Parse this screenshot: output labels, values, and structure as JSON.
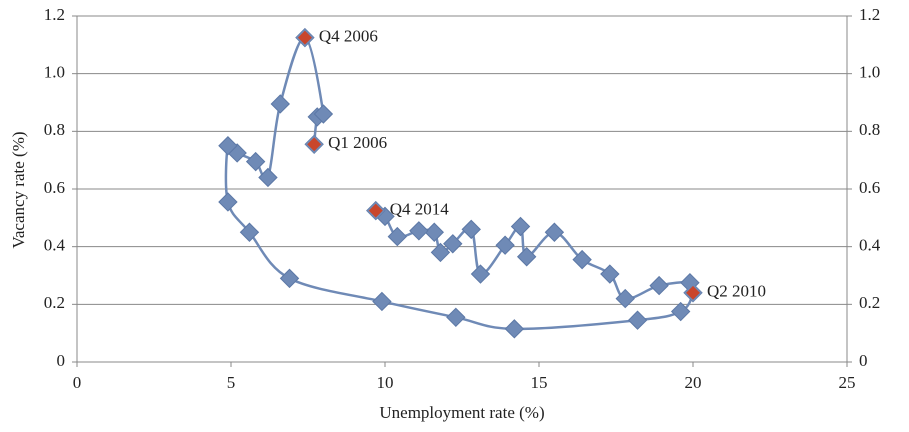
{
  "chart_data": {
    "type": "scatter",
    "x_label": "Unemployment rate (%)",
    "y_label": "Vacancy rate (%)",
    "x": [
      7.7,
      7.8,
      8.0,
      7.4,
      6.6,
      6.2,
      5.8,
      5.2,
      4.9,
      4.9,
      5.6,
      6.9,
      9.9,
      12.3,
      14.2,
      18.2,
      19.6,
      20.0,
      19.9,
      18.9,
      17.8,
      17.3,
      16.4,
      15.5,
      14.6,
      14.4,
      13.9,
      13.1,
      12.8,
      12.2,
      11.8,
      11.6,
      11.1,
      10.4,
      10.0,
      9.7
    ],
    "values": [
      0.755,
      0.85,
      0.86,
      1.125,
      0.895,
      0.64,
      0.695,
      0.725,
      0.75,
      0.555,
      0.45,
      0.29,
      0.21,
      0.155,
      0.115,
      0.145,
      0.175,
      0.24,
      0.275,
      0.265,
      0.22,
      0.305,
      0.355,
      0.45,
      0.365,
      0.47,
      0.405,
      0.305,
      0.46,
      0.41,
      0.38,
      0.45,
      0.455,
      0.435,
      0.505,
      0.525
    ],
    "color": "#6f8ab6",
    "annotations": [
      {
        "text": "Q4 2006",
        "x": 7.4,
        "y": 1.125,
        "color": "#c9462c"
      },
      {
        "text": "Q1 2006",
        "x": 7.7,
        "y": 0.755,
        "color": "#c9462c"
      },
      {
        "text": "Q4 2014",
        "x": 9.7,
        "y": 0.525,
        "color": "#c9462c"
      },
      {
        "text": "Q2 2010",
        "x": 20.0,
        "y": 0.24,
        "color": "#c9462c"
      }
    ],
    "xlim": [
      0,
      25
    ],
    "xticks": [
      0,
      5,
      10,
      15,
      20,
      25
    ],
    "ylim": [
      0,
      1.2
    ],
    "yticks": [
      0,
      0.2,
      0.4,
      0.6,
      0.8,
      {
        "value": 1,
        "label": "1.0"
      },
      1.2
    ],
    "y2lim": [
      0,
      1.2
    ],
    "y2ticks": [
      0,
      0.2,
      0.4,
      0.6,
      0.8,
      {
        "value": 1,
        "label": "1.0"
      },
      1.2
    ],
    "grid": true
  }
}
